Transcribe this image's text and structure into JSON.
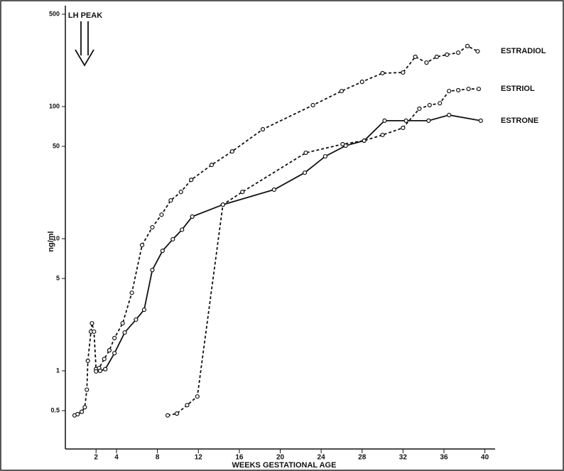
{
  "chart_data": {
    "type": "line",
    "x_label": "WEEKS GESTATIONAL AGE",
    "y_label": "ng/ml",
    "annotation": "LH PEAK",
    "log_y": true,
    "xlim": [
      -1,
      41
    ],
    "ylim": [
      0.25,
      500
    ],
    "xticks": [
      2,
      4,
      8,
      12,
      16,
      20,
      24,
      28,
      32,
      36,
      40
    ],
    "yticks": [
      500,
      100,
      50,
      10,
      5,
      1,
      0.5
    ],
    "series": [
      {
        "name": "ESTRADIOL",
        "color": "#111111",
        "dashed": true,
        "x": [
          -0.1,
          0.2,
          0.6,
          0.9,
          1.1,
          1.2,
          1.5,
          1.6,
          1.8,
          2.0,
          2.3,
          2.8,
          3.3,
          3.8,
          4.6,
          5.5,
          6.5,
          7.5,
          8.4,
          9.3,
          10.3,
          11.3,
          13.3,
          15.3,
          18.3,
          23.2,
          26,
          28,
          30,
          32,
          33.2,
          34.3,
          35.3,
          36.3,
          37.4,
          38.3,
          39.3
        ],
        "values": [
          0.46,
          0.47,
          0.49,
          0.53,
          0.72,
          1.19,
          1.98,
          2.29,
          1.98,
          1.03,
          1.05,
          1.23,
          1.43,
          1.77,
          2.29,
          3.9,
          8.95,
          12.2,
          15.2,
          19.5,
          22.6,
          27.9,
          36.2,
          45.8,
          67.3,
          102.5,
          131,
          154,
          179,
          181,
          238,
          215,
          238,
          247,
          256,
          287,
          262
        ]
      },
      {
        "name": "ESTRIOL",
        "color": "#111111",
        "dashed": true,
        "x": [
          9.0,
          9.9,
          10.9,
          11.9,
          14.4,
          16.3,
          22.5,
          26.1,
          28.2,
          30,
          32,
          33.6,
          34.6,
          35.6,
          36.5,
          37.4,
          38.4,
          39.4
        ],
        "values": [
          0.46,
          0.475,
          0.55,
          0.64,
          18.1,
          22.6,
          44.7,
          51.9,
          55.2,
          61,
          69,
          96.4,
          102.5,
          106,
          131,
          133,
          136,
          136
        ]
      },
      {
        "name": "ESTRONE",
        "color": "#111111",
        "dashed": false,
        "x": [
          2.0,
          2.4,
          2.9,
          3.8,
          4.8,
          5.9,
          6.7,
          7.5,
          8.5,
          9.5,
          10.4,
          11.4,
          14.4,
          19.4,
          22.4,
          24.4,
          26.4,
          28.2,
          30.2,
          32.3,
          34.5,
          36.5,
          39.6
        ],
        "values": [
          0.99,
          1.0,
          1.03,
          1.36,
          1.95,
          2.44,
          2.9,
          5.8,
          8.1,
          9.9,
          11.7,
          14.7,
          18.1,
          23.5,
          31.6,
          42,
          50.6,
          55.2,
          78.2,
          78.2,
          78.2,
          86.3,
          78.2
        ]
      }
    ]
  }
}
